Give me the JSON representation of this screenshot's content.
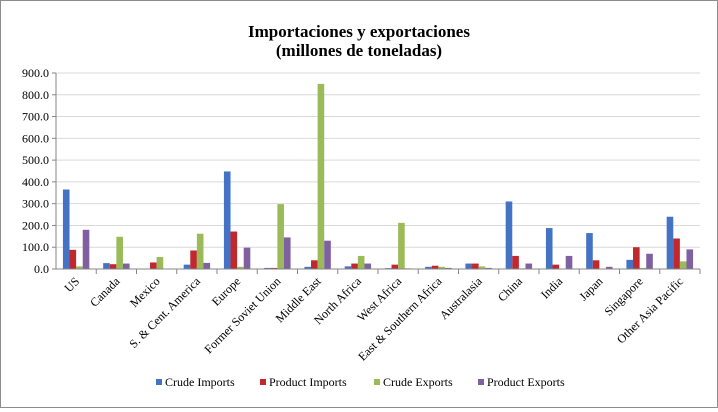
{
  "chart_data": {
    "type": "bar",
    "title": "Importaciones y exportaciones",
    "subtitle": "(millones de toneladas)",
    "xlabel": "",
    "ylabel": "",
    "ylim": [
      0,
      900
    ],
    "yticks": [
      "0.0",
      "100.0",
      "200.0",
      "300.0",
      "400.0",
      "500.0",
      "600.0",
      "700.0",
      "800.0",
      "900.0"
    ],
    "grid": true,
    "legend": "bottom",
    "categories": [
      "US",
      "Canada",
      "Mexico",
      "S. & Cent. America",
      "Europe",
      "Former Soviet Union",
      "Middle East",
      "North Africa",
      "West Africa",
      "East & Southern Africa",
      "Australasia",
      "China",
      "India",
      "Japan",
      "Singapore",
      "Other Asia Pacific"
    ],
    "series": [
      {
        "name": "Crude Imports",
        "color": "#4472c4",
        "values": [
          365,
          27,
          1,
          20,
          448,
          5,
          10,
          12,
          4,
          10,
          25,
          310,
          188,
          165,
          42,
          240
        ]
      },
      {
        "name": "Product Imports",
        "color": "#c0282d",
        "values": [
          88,
          22,
          30,
          85,
          172,
          5,
          40,
          25,
          20,
          15,
          25,
          60,
          20,
          40,
          100,
          140
        ]
      },
      {
        "name": "Crude Exports",
        "color": "#9bbb59",
        "values": [
          12,
          148,
          55,
          162,
          10,
          298,
          850,
          60,
          212,
          10,
          12,
          3,
          1,
          2,
          5,
          35
        ]
      },
      {
        "name": "Product Exports",
        "color": "#7f60a0",
        "values": [
          180,
          25,
          1,
          28,
          98,
          145,
          130,
          25,
          3,
          5,
          5,
          25,
          60,
          10,
          70,
          90
        ]
      }
    ]
  }
}
